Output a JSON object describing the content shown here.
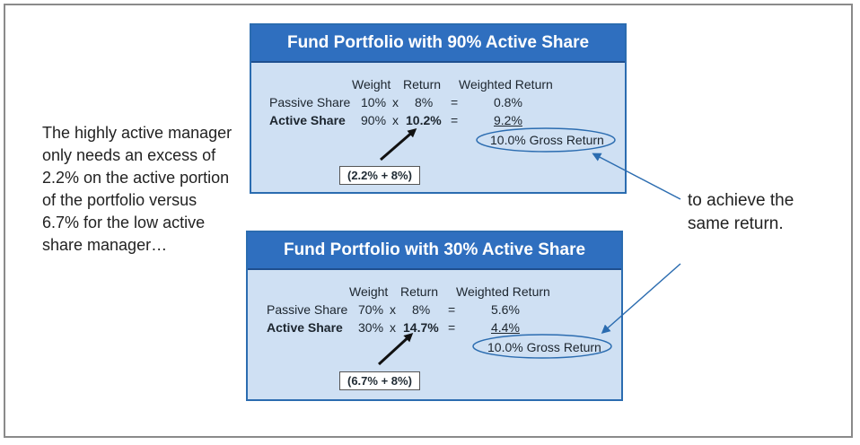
{
  "left_text": "The highly active manager only needs an excess of 2.2% on the active portion of the portfolio versus 6.7% for the low active share manager…",
  "right_text": "to achieve the same return.",
  "panels": [
    {
      "title": "Fund Portfolio with 90% Active Share",
      "headers": {
        "weight": "Weight",
        "return": "Return",
        "weighted": "Weighted Return"
      },
      "passive": {
        "label": "Passive Share",
        "weight": "10%",
        "op": "x",
        "ret": "8%",
        "eq": "=",
        "weighted": "0.8%"
      },
      "active": {
        "label": "Active Share",
        "weight": "90%",
        "op": "x",
        "ret": "10.2%",
        "eq": "=",
        "weighted": "9.2%"
      },
      "gross": "10.0% Gross Return",
      "calc": "(2.2% + 8%)"
    },
    {
      "title": "Fund Portfolio with 30% Active Share",
      "headers": {
        "weight": "Weight",
        "return": "Return",
        "weighted": "Weighted Return"
      },
      "passive": {
        "label": "Passive Share",
        "weight": "70%",
        "op": "x",
        "ret": "8%",
        "eq": "=",
        "weighted": "5.6%"
      },
      "active": {
        "label": "Active Share",
        "weight": "30%",
        "op": "x",
        "ret": "14.7%",
        "eq": "=",
        "weighted": "4.4%"
      },
      "gross": "10.0% Gross Return",
      "calc": "(6.7% + 8%)"
    }
  ]
}
